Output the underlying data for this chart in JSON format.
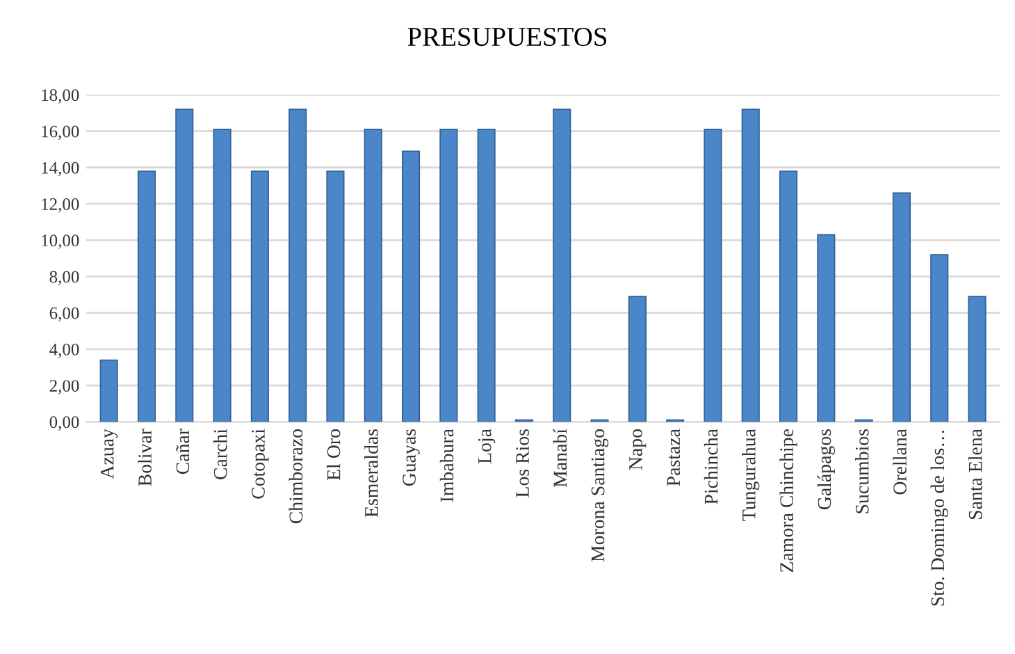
{
  "chart_data": {
    "type": "bar",
    "title": "PRESUPUESTOS",
    "categories": [
      "Azuay",
      "Bolivar",
      "Cañar",
      "Carchi",
      "Cotopaxi",
      "Chimborazo",
      "El Oro",
      "Esmeraldas",
      "Guayas",
      "Imbabura",
      "Loja",
      "Los Rios",
      "Manabí",
      "Morona Santiago",
      "Napo",
      "Pastaza",
      "Pichincha",
      "Tungurahua",
      "Zamora Chinchipe",
      "Galápagos",
      "Sucumbios",
      "Orellana",
      "Sto. Domingo de los…",
      "Santa Elena"
    ],
    "values": [
      3.4,
      13.8,
      17.2,
      16.1,
      13.8,
      17.2,
      13.8,
      16.1,
      14.9,
      16.1,
      16.1,
      0.1,
      17.2,
      0.1,
      6.9,
      0.1,
      16.1,
      17.2,
      13.8,
      10.3,
      0.1,
      12.6,
      9.2,
      6.9
    ],
    "color": "#4a86c8",
    "ylim": [
      0,
      18
    ],
    "yticks": [
      {
        "value": 0,
        "label": "0,00"
      },
      {
        "value": 2,
        "label": "2,00"
      },
      {
        "value": 4,
        "label": "4,00"
      },
      {
        "value": 6,
        "label": "6,00"
      },
      {
        "value": 8,
        "label": "8,00"
      },
      {
        "value": 10,
        "label": "10,00"
      },
      {
        "value": 12,
        "label": "12,00"
      },
      {
        "value": 14,
        "label": "14,00"
      },
      {
        "value": 16,
        "label": "16,00"
      },
      {
        "value": 18,
        "label": "18,00"
      }
    ],
    "grid": "y"
  }
}
